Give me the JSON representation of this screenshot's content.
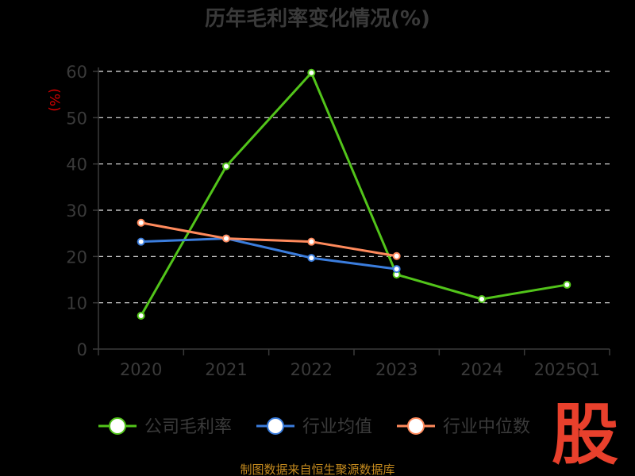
{
  "chart_data": {
    "type": "line",
    "title": "历年毛利率变化情况(%)",
    "ylabel": "(%)",
    "xlabel": "",
    "categories": [
      "2020",
      "2021",
      "2022",
      "2023",
      "2024",
      "2025Q1"
    ],
    "ylim": [
      0,
      60
    ],
    "yticks": [
      0,
      10,
      20,
      30,
      40,
      50,
      60
    ],
    "grid": true,
    "legend_position": "bottom",
    "series": [
      {
        "name": "公司毛利率",
        "color": "#52c41a",
        "values": [
          7.2,
          39.5,
          59.7,
          16.1,
          10.8,
          13.9
        ]
      },
      {
        "name": "行业均值",
        "color": "#3b7ddd",
        "values": [
          23.2,
          23.9,
          19.7,
          17.3,
          null,
          null
        ]
      },
      {
        "name": "行业中位数",
        "color": "#ff8a5c",
        "values": [
          27.3,
          23.9,
          23.2,
          20.1,
          null,
          null
        ]
      }
    ]
  },
  "source": "制图数据来自恒生聚源数据库",
  "logo": {
    "text": "股",
    "color": "#e8402c"
  }
}
